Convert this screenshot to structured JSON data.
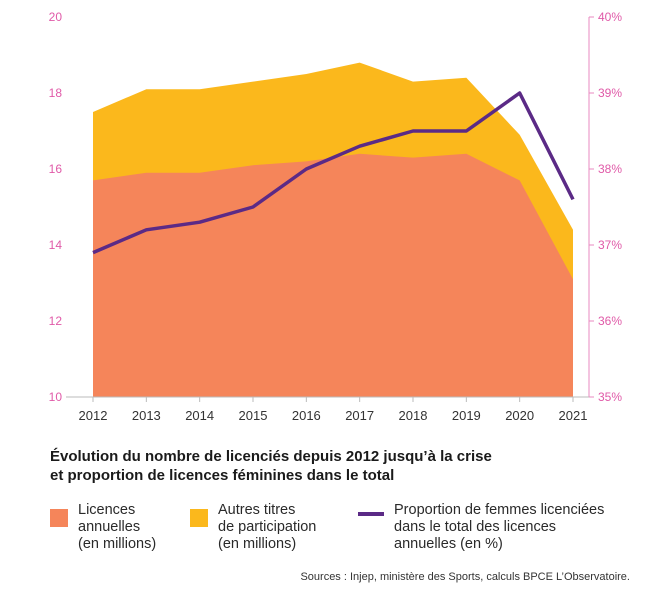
{
  "chart_data": {
    "type": "area",
    "title": "Évolution du nombre de licenciés depuis 2012 jusqu’à la crise\net proportion de licences féminines dans le total",
    "x": [
      "2012",
      "2013",
      "2014",
      "2015",
      "2016",
      "2017",
      "2018",
      "2019",
      "2020",
      "2021"
    ],
    "y_left_ticks": [
      "10",
      "12",
      "14",
      "16",
      "18",
      "20"
    ],
    "y_right_ticks": [
      "35%",
      "36%",
      "37%",
      "38%",
      "39%",
      "40%"
    ],
    "ylim_left": [
      10,
      20
    ],
    "ylim_right": [
      35,
      40
    ],
    "series": [
      {
        "name": "Licences annuelles (en millions)",
        "kind": "area",
        "axis": "left",
        "color": "#f5855a",
        "values": [
          15.7,
          15.9,
          15.9,
          16.1,
          16.2,
          16.4,
          16.3,
          16.4,
          15.7,
          13.1
        ]
      },
      {
        "name": "Autres titres de participation (en millions)",
        "kind": "area-stacked-total",
        "axis": "left",
        "color": "#fbb81c",
        "values": [
          17.5,
          18.1,
          18.1,
          18.3,
          18.5,
          18.8,
          18.3,
          18.4,
          16.9,
          14.4
        ]
      },
      {
        "name": "Proportion de femmes licenciées dans le total des licences annuelles (en %)",
        "kind": "line",
        "axis": "right",
        "color": "#5b2a86",
        "values": [
          36.9,
          37.2,
          37.3,
          37.5,
          38.0,
          38.3,
          38.5,
          38.5,
          39.0,
          37.6
        ]
      }
    ],
    "grid": false,
    "legend_position": "bottom"
  },
  "legend": {
    "item1": "Licences\nannuelles\n(en millions)",
    "item2": "Autres titres\nde participation\n(en millions)",
    "item3": "Proportion de femmes licenciées\ndans le total des licences\nannuelles (en %)"
  },
  "source": "Sources : Injep, ministère des Sports, calculs BPCE L’Observatoire."
}
